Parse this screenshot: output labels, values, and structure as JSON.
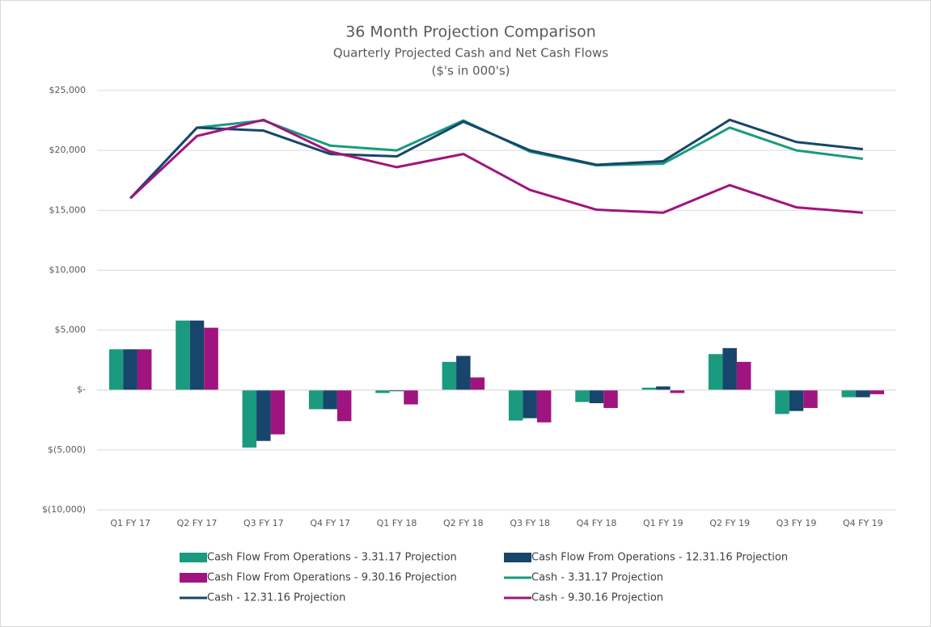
{
  "chart_data": {
    "type": "bar",
    "title": "36 Month Projection Comparison",
    "subtitle": "Quarterly Projected Cash and Net Cash Flows",
    "subtitle2": "($'s in 000's)",
    "categories": [
      "Q1 FY 17",
      "Q2 FY 17",
      "Q3 FY 17",
      "Q4 FY 17",
      "Q1 FY 18",
      "Q2 FY 18",
      "Q3 FY 18",
      "Q4 FY 18",
      "Q1 FY 19",
      "Q2 FY 19",
      "Q3 FY 19",
      "Q4 FY 19"
    ],
    "ylim": [
      -10000,
      25000
    ],
    "yticks": [
      {
        "value": -10000,
        "label": "$(10,000)"
      },
      {
        "value": -5000,
        "label": "$(5,000)"
      },
      {
        "value": 0,
        "label": "$-"
      },
      {
        "value": 5000,
        "label": "$5,000"
      },
      {
        "value": 10000,
        "label": "$10,000"
      },
      {
        "value": 15000,
        "label": "$15,000"
      },
      {
        "value": 20000,
        "label": "$20,000"
      },
      {
        "value": 25000,
        "label": "$25,000"
      }
    ],
    "grid": true,
    "legend": "bottom",
    "series": [
      {
        "name": "Cash Flow From Operations - 3.31.17 Projection",
        "type": "bar",
        "color": "#1a9a7e",
        "values": [
          3400,
          5800,
          -4800,
          -1600,
          -250,
          2350,
          -2550,
          -1000,
          200,
          3000,
          -2000,
          -600
        ]
      },
      {
        "name": "Cash Flow From Operations - 12.31.16 Projection",
        "type": "bar",
        "color": "#17456b",
        "values": [
          3400,
          5800,
          -4250,
          -1600,
          -100,
          2850,
          -2350,
          -1100,
          300,
          3500,
          -1750,
          -600
        ]
      },
      {
        "name": "Cash Flow From Operations - 9.30.16 Projection",
        "type": "bar",
        "color": "#a0147f",
        "values": [
          3400,
          5200,
          -3700,
          -2600,
          -1200,
          1050,
          -2700,
          -1500,
          -250,
          2350,
          -1500,
          -350
        ]
      },
      {
        "name": "Cash - 3.31.17 Projection",
        "type": "line",
        "color": "#1a9a7e",
        "values": [
          16000,
          21900,
          22500,
          20400,
          20000,
          22500,
          19900,
          18750,
          18900,
          21900,
          20000,
          19300
        ]
      },
      {
        "name": "Cash - 12.31.16 Projection",
        "type": "line",
        "color": "#17456b",
        "values": [
          16000,
          21900,
          21650,
          19700,
          19500,
          22400,
          20000,
          18800,
          19100,
          22550,
          20700,
          20100
        ]
      },
      {
        "name": "Cash - 9.30.16 Projection",
        "type": "line",
        "color": "#a0147f",
        "values": [
          16000,
          21200,
          22550,
          19900,
          18600,
          19700,
          16700,
          15050,
          14800,
          17100,
          15250,
          14800
        ]
      }
    ]
  }
}
